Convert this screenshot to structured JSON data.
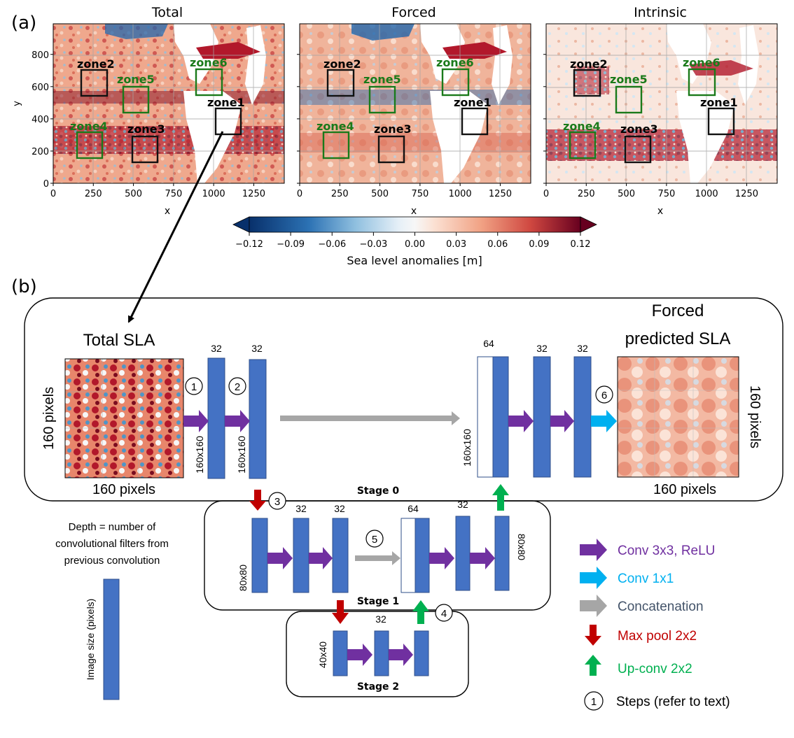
{
  "panel_a": {
    "label": "(a)",
    "panels": [
      {
        "title": "Total"
      },
      {
        "title": "Forced"
      },
      {
        "title": "Intrinsic"
      }
    ],
    "x_ticks": [
      "0",
      "250",
      "500",
      "750",
      "1000",
      "1250"
    ],
    "y_ticks": [
      "0",
      "200",
      "400",
      "600",
      "800"
    ],
    "xlabel": "x",
    "ylabel": "y",
    "zones": [
      "zone1",
      "zone2",
      "zone3",
      "zone4",
      "zone5",
      "zone6"
    ],
    "colorbar": {
      "ticks": [
        "−0.12",
        "−0.09",
        "−0.06",
        "−0.03",
        "0.00",
        "0.03",
        "0.06",
        "0.09",
        "0.12"
      ],
      "label": "Sea level anomalies [m]"
    }
  },
  "panel_b": {
    "label": "(b)",
    "input_title": "Total SLA",
    "output_title_1": "Forced",
    "output_title_2": "predicted SLA",
    "px160": "160 pixels",
    "size160": "160x160",
    "size80": "80x80",
    "size40": "40x40",
    "d32": "32",
    "d64": "64",
    "stage0": "Stage 0",
    "stage1": "Stage 1",
    "stage2": "Stage 2",
    "steps": [
      "1",
      "2",
      "3",
      "4",
      "5",
      "6"
    ],
    "depth_note": [
      "Depth = number of",
      "convolutional filters from",
      "previous convolution"
    ],
    "image_size_note": "Image size (pixels)",
    "legend": [
      {
        "label": "Conv 3x3, ReLU",
        "color": "#7030a0"
      },
      {
        "label": "Conv 1x1",
        "color": "#00b0f0"
      },
      {
        "label": "Concatenation",
        "color": "#a6a6a6"
      },
      {
        "label": "Max pool 2x2",
        "color": "#c00000"
      },
      {
        "label": "Up-conv 2x2",
        "color": "#00b050"
      },
      {
        "label": "Steps (refer to text)",
        "color": "#000000"
      }
    ],
    "legend_step_number": "1"
  }
}
